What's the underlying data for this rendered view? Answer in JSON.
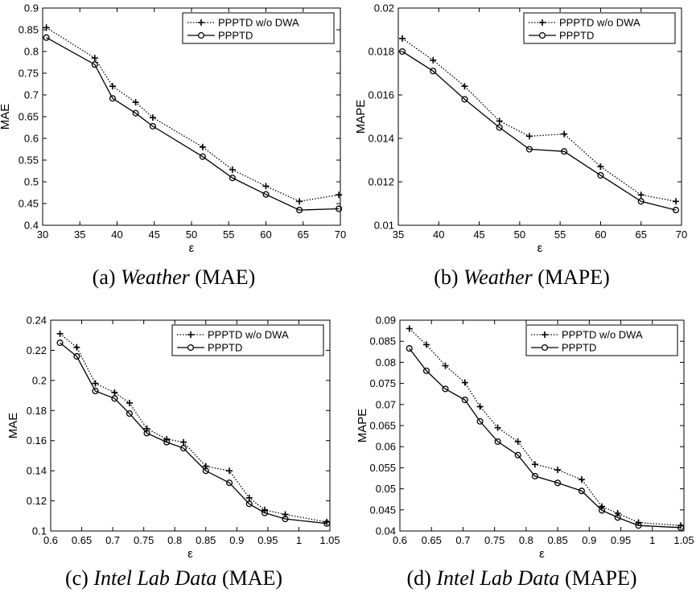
{
  "chart_data": [
    {
      "type": "line",
      "panel_label": "(a)",
      "caption_italic": "Weather",
      "caption_suffix": "(MAE)",
      "xlabel": "ε",
      "ylabel": "MAE",
      "xlim": [
        30,
        70
      ],
      "ylim": [
        0.4,
        0.9
      ],
      "xticks": [
        30,
        35,
        40,
        45,
        50,
        55,
        60,
        65,
        70
      ],
      "yticks": [
        0.4,
        0.45,
        0.5,
        0.55,
        0.6,
        0.65,
        0.7,
        0.75,
        0.8,
        0.85,
        0.9
      ],
      "yfmt": 2,
      "legend_position": "top-right",
      "grid": false,
      "series": [
        {
          "name": "PPPTD w/o DWA",
          "style": "dotted",
          "marker": "plus",
          "x": [
            30.5,
            37,
            39.4,
            42.5,
            44.8,
            51.5,
            55.5,
            60,
            64.5,
            69.8
          ],
          "y": [
            0.855,
            0.785,
            0.72,
            0.683,
            0.648,
            0.58,
            0.528,
            0.49,
            0.455,
            0.47
          ]
        },
        {
          "name": "PPPTD",
          "style": "solid",
          "marker": "circle",
          "x": [
            30.5,
            37,
            39.4,
            42.5,
            44.8,
            51.5,
            55.5,
            60,
            64.5,
            69.8
          ],
          "y": [
            0.832,
            0.77,
            0.692,
            0.658,
            0.628,
            0.558,
            0.509,
            0.471,
            0.435,
            0.438
          ]
        }
      ]
    },
    {
      "type": "line",
      "panel_label": "(b)",
      "caption_italic": "Weather",
      "caption_suffix": "(MAPE)",
      "xlabel": "ε",
      "ylabel": "MAPE",
      "xlim": [
        35,
        70
      ],
      "ylim": [
        0.01,
        0.02
      ],
      "xticks": [
        35,
        40,
        45,
        50,
        55,
        60,
        65,
        70
      ],
      "yticks": [
        0.01,
        0.012,
        0.014,
        0.016,
        0.018,
        0.02
      ],
      "yfmt": 3,
      "legend_position": "top-right",
      "grid": false,
      "series": [
        {
          "name": "PPPTD w/o DWA",
          "style": "dotted",
          "marker": "plus",
          "x": [
            35.5,
            39.3,
            43.2,
            47.5,
            51.2,
            55.5,
            60,
            65,
            69.3
          ],
          "y": [
            0.0186,
            0.0176,
            0.0164,
            0.0148,
            0.0141,
            0.0142,
            0.0127,
            0.0114,
            0.0111
          ]
        },
        {
          "name": "PPPTD",
          "style": "solid",
          "marker": "circle",
          "x": [
            35.5,
            39.3,
            43.2,
            47.5,
            51.2,
            55.5,
            60,
            65,
            69.3
          ],
          "y": [
            0.018,
            0.0171,
            0.0158,
            0.0145,
            0.0135,
            0.0134,
            0.0123,
            0.0111,
            0.0107
          ]
        }
      ]
    },
    {
      "type": "line",
      "panel_label": "(c)",
      "caption_italic": "Intel Lab Data",
      "caption_suffix": "(MAE)",
      "xlabel": "ε",
      "ylabel": "MAE",
      "xlim": [
        0.6,
        1.05
      ],
      "ylim": [
        0.1,
        0.24
      ],
      "xticks": [
        0.6,
        0.65,
        0.7,
        0.75,
        0.8,
        0.85,
        0.9,
        0.95,
        1,
        1.05
      ],
      "yticks": [
        0.1,
        0.12,
        0.14,
        0.16,
        0.18,
        0.2,
        0.22,
        0.24
      ],
      "yfmt": 2,
      "legend_position": "top-right",
      "grid": false,
      "series": [
        {
          "name": "PPPTD w/o DWA",
          "style": "dotted",
          "marker": "plus",
          "x": [
            0.615,
            0.642,
            0.672,
            0.703,
            0.727,
            0.755,
            0.787,
            0.814,
            0.85,
            0.888,
            0.92,
            0.945,
            0.978,
            1.045
          ],
          "y": [
            0.231,
            0.222,
            0.198,
            0.192,
            0.185,
            0.168,
            0.161,
            0.159,
            0.143,
            0.14,
            0.122,
            0.114,
            0.111,
            0.106
          ]
        },
        {
          "name": "PPPTD",
          "style": "solid",
          "marker": "circle",
          "x": [
            0.615,
            0.642,
            0.672,
            0.703,
            0.727,
            0.755,
            0.787,
            0.814,
            0.85,
            0.888,
            0.92,
            0.945,
            0.978,
            1.045
          ],
          "y": [
            0.225,
            0.216,
            0.193,
            0.188,
            0.178,
            0.165,
            0.159,
            0.155,
            0.14,
            0.132,
            0.118,
            0.112,
            0.108,
            0.105
          ]
        }
      ]
    },
    {
      "type": "line",
      "panel_label": "(d)",
      "caption_italic": "Intel Lab Data",
      "caption_suffix": "(MAPE)",
      "xlabel": "ε",
      "ylabel": "MAPE",
      "xlim": [
        0.6,
        1.05
      ],
      "ylim": [
        0.04,
        0.09
      ],
      "xticks": [
        0.6,
        0.65,
        0.7,
        0.75,
        0.8,
        0.85,
        0.9,
        0.95,
        1,
        1.05
      ],
      "yticks": [
        0.04,
        0.045,
        0.05,
        0.055,
        0.06,
        0.065,
        0.07,
        0.075,
        0.08,
        0.085,
        0.09
      ],
      "yfmt": 3,
      "legend_position": "top-right",
      "grid": false,
      "series": [
        {
          "name": "PPPTD w/o DWA",
          "style": "dotted",
          "marker": "plus",
          "x": [
            0.615,
            0.642,
            0.672,
            0.703,
            0.727,
            0.755,
            0.787,
            0.814,
            0.85,
            0.888,
            0.92,
            0.945,
            0.978,
            1.045
          ],
          "y": [
            0.088,
            0.0842,
            0.0792,
            0.0752,
            0.0695,
            0.0645,
            0.0612,
            0.0558,
            0.0545,
            0.0522,
            0.0458,
            0.0442,
            0.042,
            0.0413
          ]
        },
        {
          "name": "PPPTD",
          "style": "solid",
          "marker": "circle",
          "x": [
            0.615,
            0.642,
            0.672,
            0.703,
            0.727,
            0.755,
            0.787,
            0.814,
            0.85,
            0.888,
            0.92,
            0.945,
            0.978,
            1.045
          ],
          "y": [
            0.0833,
            0.078,
            0.0737,
            0.0711,
            0.066,
            0.0612,
            0.058,
            0.053,
            0.0514,
            0.0495,
            0.0449,
            0.0432,
            0.0413,
            0.0408
          ]
        }
      ]
    }
  ],
  "colors": {
    "axis": "#000000",
    "line": "#000000",
    "background": "#ffffff"
  }
}
